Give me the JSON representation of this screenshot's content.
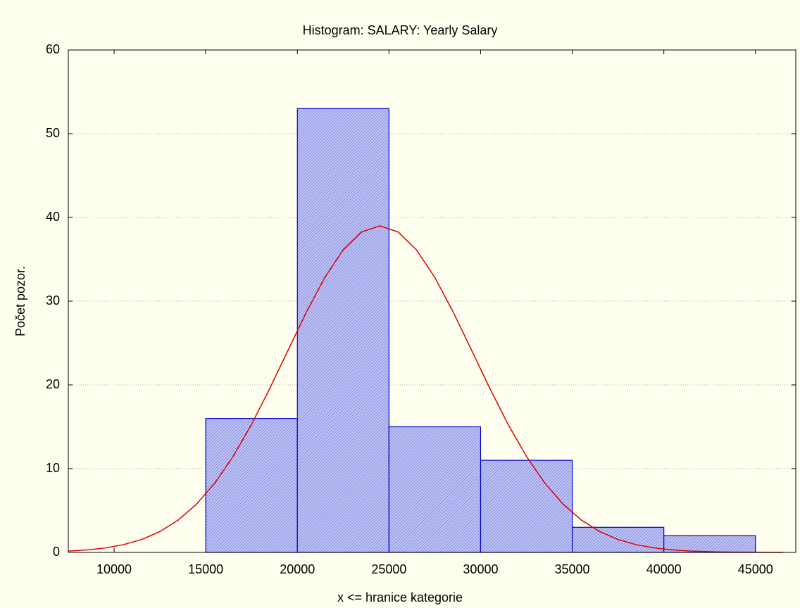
{
  "chart_data": {
    "type": "histogram",
    "title": "Histogram: SALARY: Yearly Salary",
    "xlabel": "x <= hranice kategorie",
    "ylabel": "Počet pozor.",
    "bins": [
      15000,
      20000,
      25000,
      30000,
      35000,
      40000,
      45000
    ],
    "counts": [
      16,
      53,
      15,
      11,
      3,
      2
    ],
    "color": "#0000cc",
    "curve": {
      "color": "#dd0000",
      "x": [
        7500,
        8500,
        9500,
        10500,
        11500,
        12500,
        13500,
        14500,
        15500,
        16500,
        17500,
        18500,
        19500,
        20500,
        21500,
        22500,
        23500,
        24500,
        25500,
        26500,
        27500,
        28500,
        29500,
        30500,
        31500,
        32500,
        33500,
        34500,
        35500,
        36500,
        37500,
        38500,
        39500,
        40500,
        41500,
        42500,
        43500,
        44500,
        45500,
        46500
      ],
      "values": [
        0.16,
        0.29,
        0.53,
        0.92,
        1.54,
        2.49,
        3.86,
        5.77,
        8.29,
        11.48,
        15.29,
        19.6,
        24.19,
        28.72,
        32.84,
        36.13,
        38.26,
        39,
        38.26,
        36.13,
        32.84,
        28.72,
        24.19,
        19.6,
        15.29,
        11.48,
        8.29,
        5.77,
        3.86,
        2.49,
        1.54,
        0.92,
        0.53,
        0.29,
        0.16,
        0.08,
        0.04,
        0.02,
        0.01,
        0
      ]
    },
    "xlim": [
      7500,
      47200
    ],
    "ylim": [
      0,
      60
    ],
    "xticks": [
      10000,
      15000,
      20000,
      25000,
      30000,
      35000,
      40000,
      45000
    ],
    "yticks": [
      0,
      10,
      20,
      30,
      40,
      50,
      60
    ],
    "grid": true
  }
}
